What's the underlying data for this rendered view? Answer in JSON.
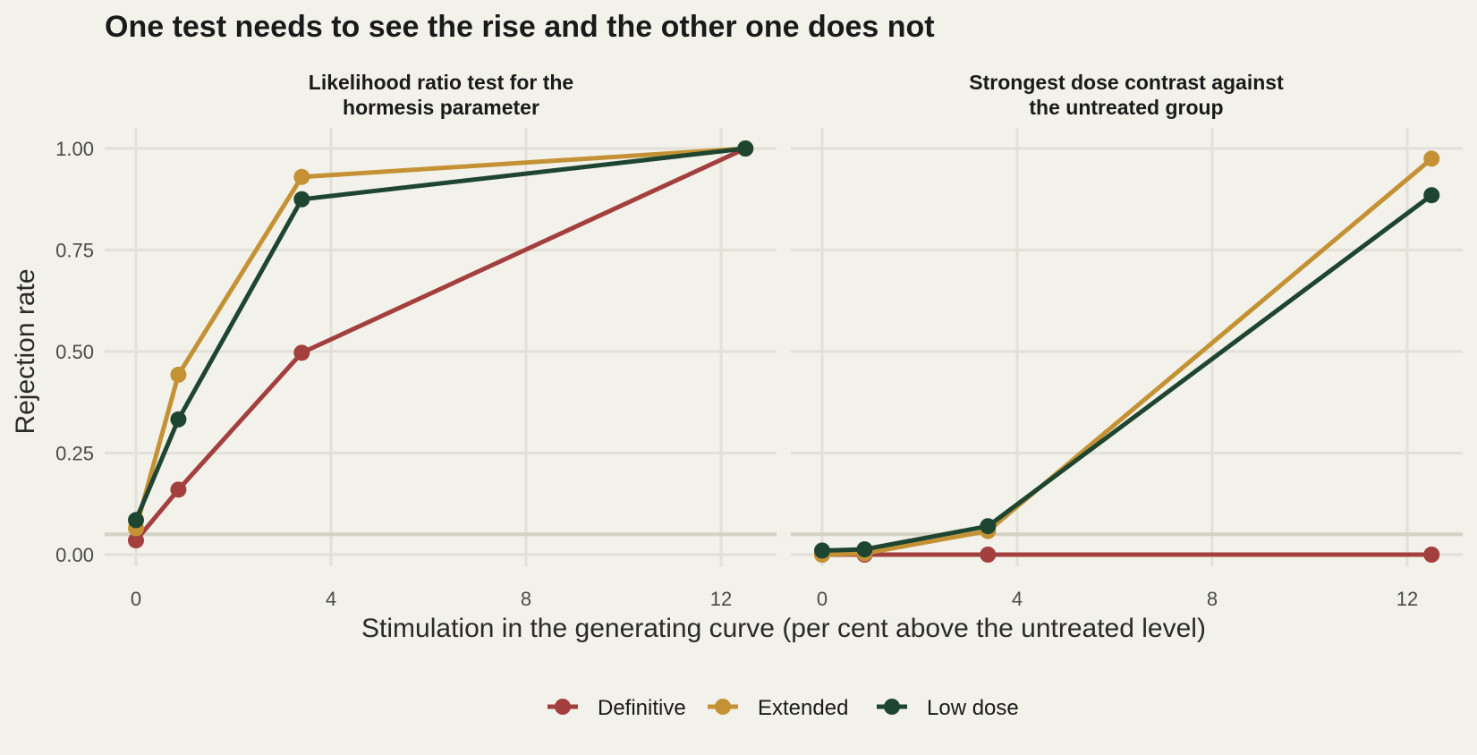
{
  "chart_data": {
    "type": "line",
    "title": "One test needs to see the rise and the other one does not",
    "xlabel": "Stimulation in the generating curve (per cent above the untreated level)",
    "ylabel": "Rejection rate",
    "xlim": [
      -0.6,
      13
    ],
    "ylim": [
      -0.04,
      1.05
    ],
    "x_ticks": [
      0,
      4,
      8,
      12
    ],
    "y_ticks": [
      0.0,
      0.25,
      0.5,
      0.75,
      1.0
    ],
    "x_tick_labels": [
      "0",
      "4",
      "8",
      "12"
    ],
    "y_tick_labels": [
      "0.00",
      "0.25",
      "0.50",
      "0.75",
      "1.00"
    ],
    "reference_line_y": 0.05,
    "grid": true,
    "legend": {
      "position": "bottom",
      "entries": [
        "Definitive",
        "Extended",
        "Low dose"
      ]
    },
    "series_colors": {
      "Definitive": "#a33f3d",
      "Extended": "#c49234",
      "Low dose": "#1e4530"
    },
    "panels": [
      {
        "title": "Likelihood ratio test for the hormesis parameter",
        "title_lines": [
          "Likelihood ratio test for the",
          "hormesis parameter"
        ],
        "x": [
          0,
          0.87,
          3.4,
          12.5
        ],
        "series": [
          {
            "name": "Definitive",
            "values": [
              0.035,
              0.16,
              0.497,
              1.0
            ]
          },
          {
            "name": "Extended",
            "values": [
              0.065,
              0.443,
              0.93,
              1.0
            ]
          },
          {
            "name": "Low dose",
            "values": [
              0.085,
              0.333,
              0.875,
              1.0
            ]
          }
        ]
      },
      {
        "title": "Strongest dose contrast against the untreated group",
        "title_lines": [
          "Strongest dose contrast against",
          "the untreated group"
        ],
        "x": [
          0,
          0.87,
          3.4,
          12.5
        ],
        "series": [
          {
            "name": "Definitive",
            "values": [
              0.0,
              0.0,
              0.0,
              0.0
            ]
          },
          {
            "name": "Extended",
            "values": [
              0.0,
              0.003,
              0.058,
              0.975
            ]
          },
          {
            "name": "Low dose",
            "values": [
              0.01,
              0.013,
              0.07,
              0.885
            ]
          }
        ]
      }
    ]
  }
}
